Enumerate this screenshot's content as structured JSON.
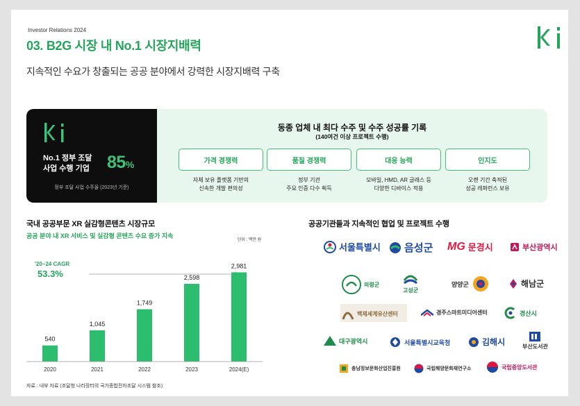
{
  "header": {
    "label": "Investor Relations 2024",
    "title": "03. B2G 시장 내 No.1 시장지배력",
    "subtitle": "지속적인 수요가 창출되는 공공 분야에서 강력한 시장지배력 구축",
    "logo": "ki"
  },
  "hero": {
    "logo": "ki",
    "rank_label_line1": "No.1 정부 조달",
    "rank_label_line2": "사업 수행 기업",
    "percent_value": "85",
    "percent_symbol": "%",
    "note": "정부 조달 사업 수주율 (2023년 기준)",
    "headline": "동종 업체 내 최다 수주 및 수주 성공률 기록",
    "subheadline": "(140여건 이상 프로젝트 수행)",
    "features": [
      {
        "label": "가격 경쟁력",
        "desc1": "자체 보유 플랫폼 기반의",
        "desc2": "신속한 개발 편의성"
      },
      {
        "label": "품질 경쟁력",
        "desc1": "정부 기관",
        "desc2": "주요 인증 다수 획득"
      },
      {
        "label": "대응 능력",
        "desc1": "모바일, HMD, AR 글래스 등",
        "desc2": "다양한 디바이스 적용"
      },
      {
        "label": "인지도",
        "desc1": "오랜 기간 축적된",
        "desc2": "성공 레퍼런스 보유"
      }
    ]
  },
  "market": {
    "title": "국내 공공부문 XR 실감형콘텐츠 시장규모",
    "subtitle": "공공 분야 내 XR 서비스 및 실감형 콘텐츠 수요 증가 지속",
    "unit": "단위 : 백만 원",
    "cagr_label": "'20~24 CAGR",
    "cagr_value": "53.3%",
    "source": "자료 : 내부 자료 (조달청 나라장터의 국가종합전자조달 시스템 참조)"
  },
  "chart_data": {
    "type": "bar",
    "categories": [
      "2020",
      "2021",
      "2022",
      "2023",
      "2024(E)"
    ],
    "values": [
      540,
      1045,
      1749,
      2598,
      2981
    ],
    "value_labels": [
      "540",
      "1,045",
      "1,749",
      "2,598",
      "2,981"
    ],
    "title": "국내 공공부문 XR 실감형콘텐츠 시장규모",
    "xlabel": "",
    "ylabel": "",
    "ylim": [
      0,
      3200
    ],
    "grid": false,
    "bar_color": "#2dbd6e"
  },
  "partners": {
    "title": "공공기관들과 지속적인 협업 및 프로젝트 수행",
    "items": [
      {
        "name": "서울특별시",
        "icon": "seoul-haechi-icon",
        "color": "#1f4aa3"
      },
      {
        "name": "음성군",
        "icon": "eumseong-icon",
        "color": "#1f4aa3"
      },
      {
        "name": "문경시",
        "icon": "mungyeong-icon",
        "color": "#e2173f"
      },
      {
        "name": "부산광역시",
        "icon": "busan-icon",
        "color": "#c0185b"
      },
      {
        "name": "의령군",
        "icon": "uiryeong-icon",
        "color": "#1f8a4c"
      },
      {
        "name": "고성군",
        "icon": "goseong-icon",
        "color": "#1f8a4c"
      },
      {
        "name": "양양군",
        "icon": "yangyang-icon",
        "color": "#333333"
      },
      {
        "name": "해남군",
        "icon": "haenam-icon",
        "color": "#c0185b"
      },
      {
        "name": "백제세계유산센터",
        "icon": "baekje-icon",
        "color": "#8b6a3d"
      },
      {
        "name": "경주스마트미디어센터",
        "icon": "gyeongju-icon",
        "color": "#333333"
      },
      {
        "name": "경산시",
        "icon": "gyeongsan-icon",
        "color": "#1f8a4c"
      },
      {
        "name": "대구광역시",
        "icon": "daegu-icon",
        "color": "#1f8a4c"
      },
      {
        "name": "서울특별시교육청",
        "icon": "seoul-edu-icon",
        "color": "#1f4aa3"
      },
      {
        "name": "김해시",
        "icon": "gimhae-icon",
        "color": "#1f4aa3"
      },
      {
        "name": "부산도서관",
        "icon": "busan-library-icon",
        "color": "#333333"
      },
      {
        "name": "충남정보문화산업진흥원",
        "icon": "chungnam-icon",
        "color": "#333333"
      },
      {
        "name": "국립해양문화재연구소",
        "icon": "marine-heritage-icon",
        "color": "#333333"
      },
      {
        "name": "국립중앙도서관",
        "icon": "national-library-icon",
        "color": "#c0185b"
      }
    ]
  },
  "colors": {
    "brand_green": "#25a55a",
    "bar_green": "#2dbd6e",
    "dark": "#0e0e0e",
    "hero_bg": "#e8f7ee"
  }
}
